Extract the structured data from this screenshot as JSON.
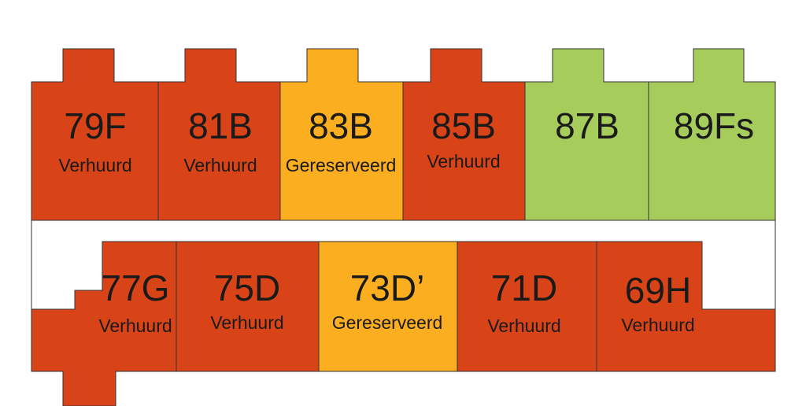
{
  "top_row": [
    {
      "name": "79F",
      "status": "Verhuurd",
      "color": "#d84418"
    },
    {
      "name": "81B",
      "status": "Verhuurd",
      "color": "#d84418"
    },
    {
      "name": "83B",
      "status": "Gereserveerd",
      "color": "#fbae1f"
    },
    {
      "name": "85B",
      "status": "Verhuurd",
      "color": "#d84418"
    },
    {
      "name": "87B",
      "color": "#a6cc5c"
    },
    {
      "name": "89Fs",
      "color": "#a6cc5c"
    }
  ],
  "bottom_row": [
    {
      "name": "77G",
      "status": "Verhuurd",
      "color": "#d84418"
    },
    {
      "name": "75D",
      "status": "Verhuurd",
      "color": "#d84418"
    },
    {
      "name": "73D’",
      "status": "Gereserveerd",
      "color": "#fbae1f"
    },
    {
      "name": "71D",
      "status": "Verhuurd",
      "color": "#d84418"
    },
    {
      "name": "69H",
      "status": "Verhuurd",
      "color": "#d84418"
    }
  ]
}
